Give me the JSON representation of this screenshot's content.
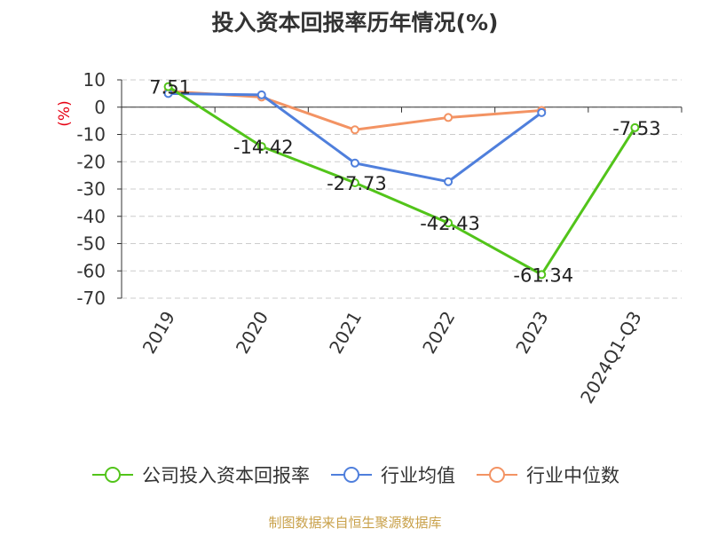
{
  "title": "投入资本回报率历年情况(%)",
  "source": "制图数据来自恒生聚源数据库",
  "chart_data": {
    "type": "line",
    "categories": [
      "2019",
      "2020",
      "2021",
      "2022",
      "2023",
      "2024Q1-Q3"
    ],
    "ylabel": "(%)",
    "ylim": [
      -70,
      10
    ],
    "yticks": [
      10,
      0,
      -10,
      -20,
      -30,
      -40,
      -50,
      -60,
      -70
    ],
    "grid": true,
    "legend_position": "bottom",
    "series": [
      {
        "name": "公司投入资本回报率",
        "color": "#52c41a",
        "values": [
          7.51,
          -14.42,
          -27.73,
          -42.43,
          -61.34,
          -7.53
        ],
        "labels": [
          "7.51",
          "-14.42",
          "-27.73",
          "-42.43",
          "-61.34",
          "-7.53"
        ]
      },
      {
        "name": "行业均值",
        "color": "#4f7fdc",
        "values": [
          5.0,
          4.5,
          -20.5,
          -27.3,
          -2.0,
          null
        ]
      },
      {
        "name": "行业中位数",
        "color": "#f39363",
        "values": [
          5.8,
          3.7,
          -8.3,
          -3.8,
          -1.2,
          null
        ]
      }
    ]
  }
}
